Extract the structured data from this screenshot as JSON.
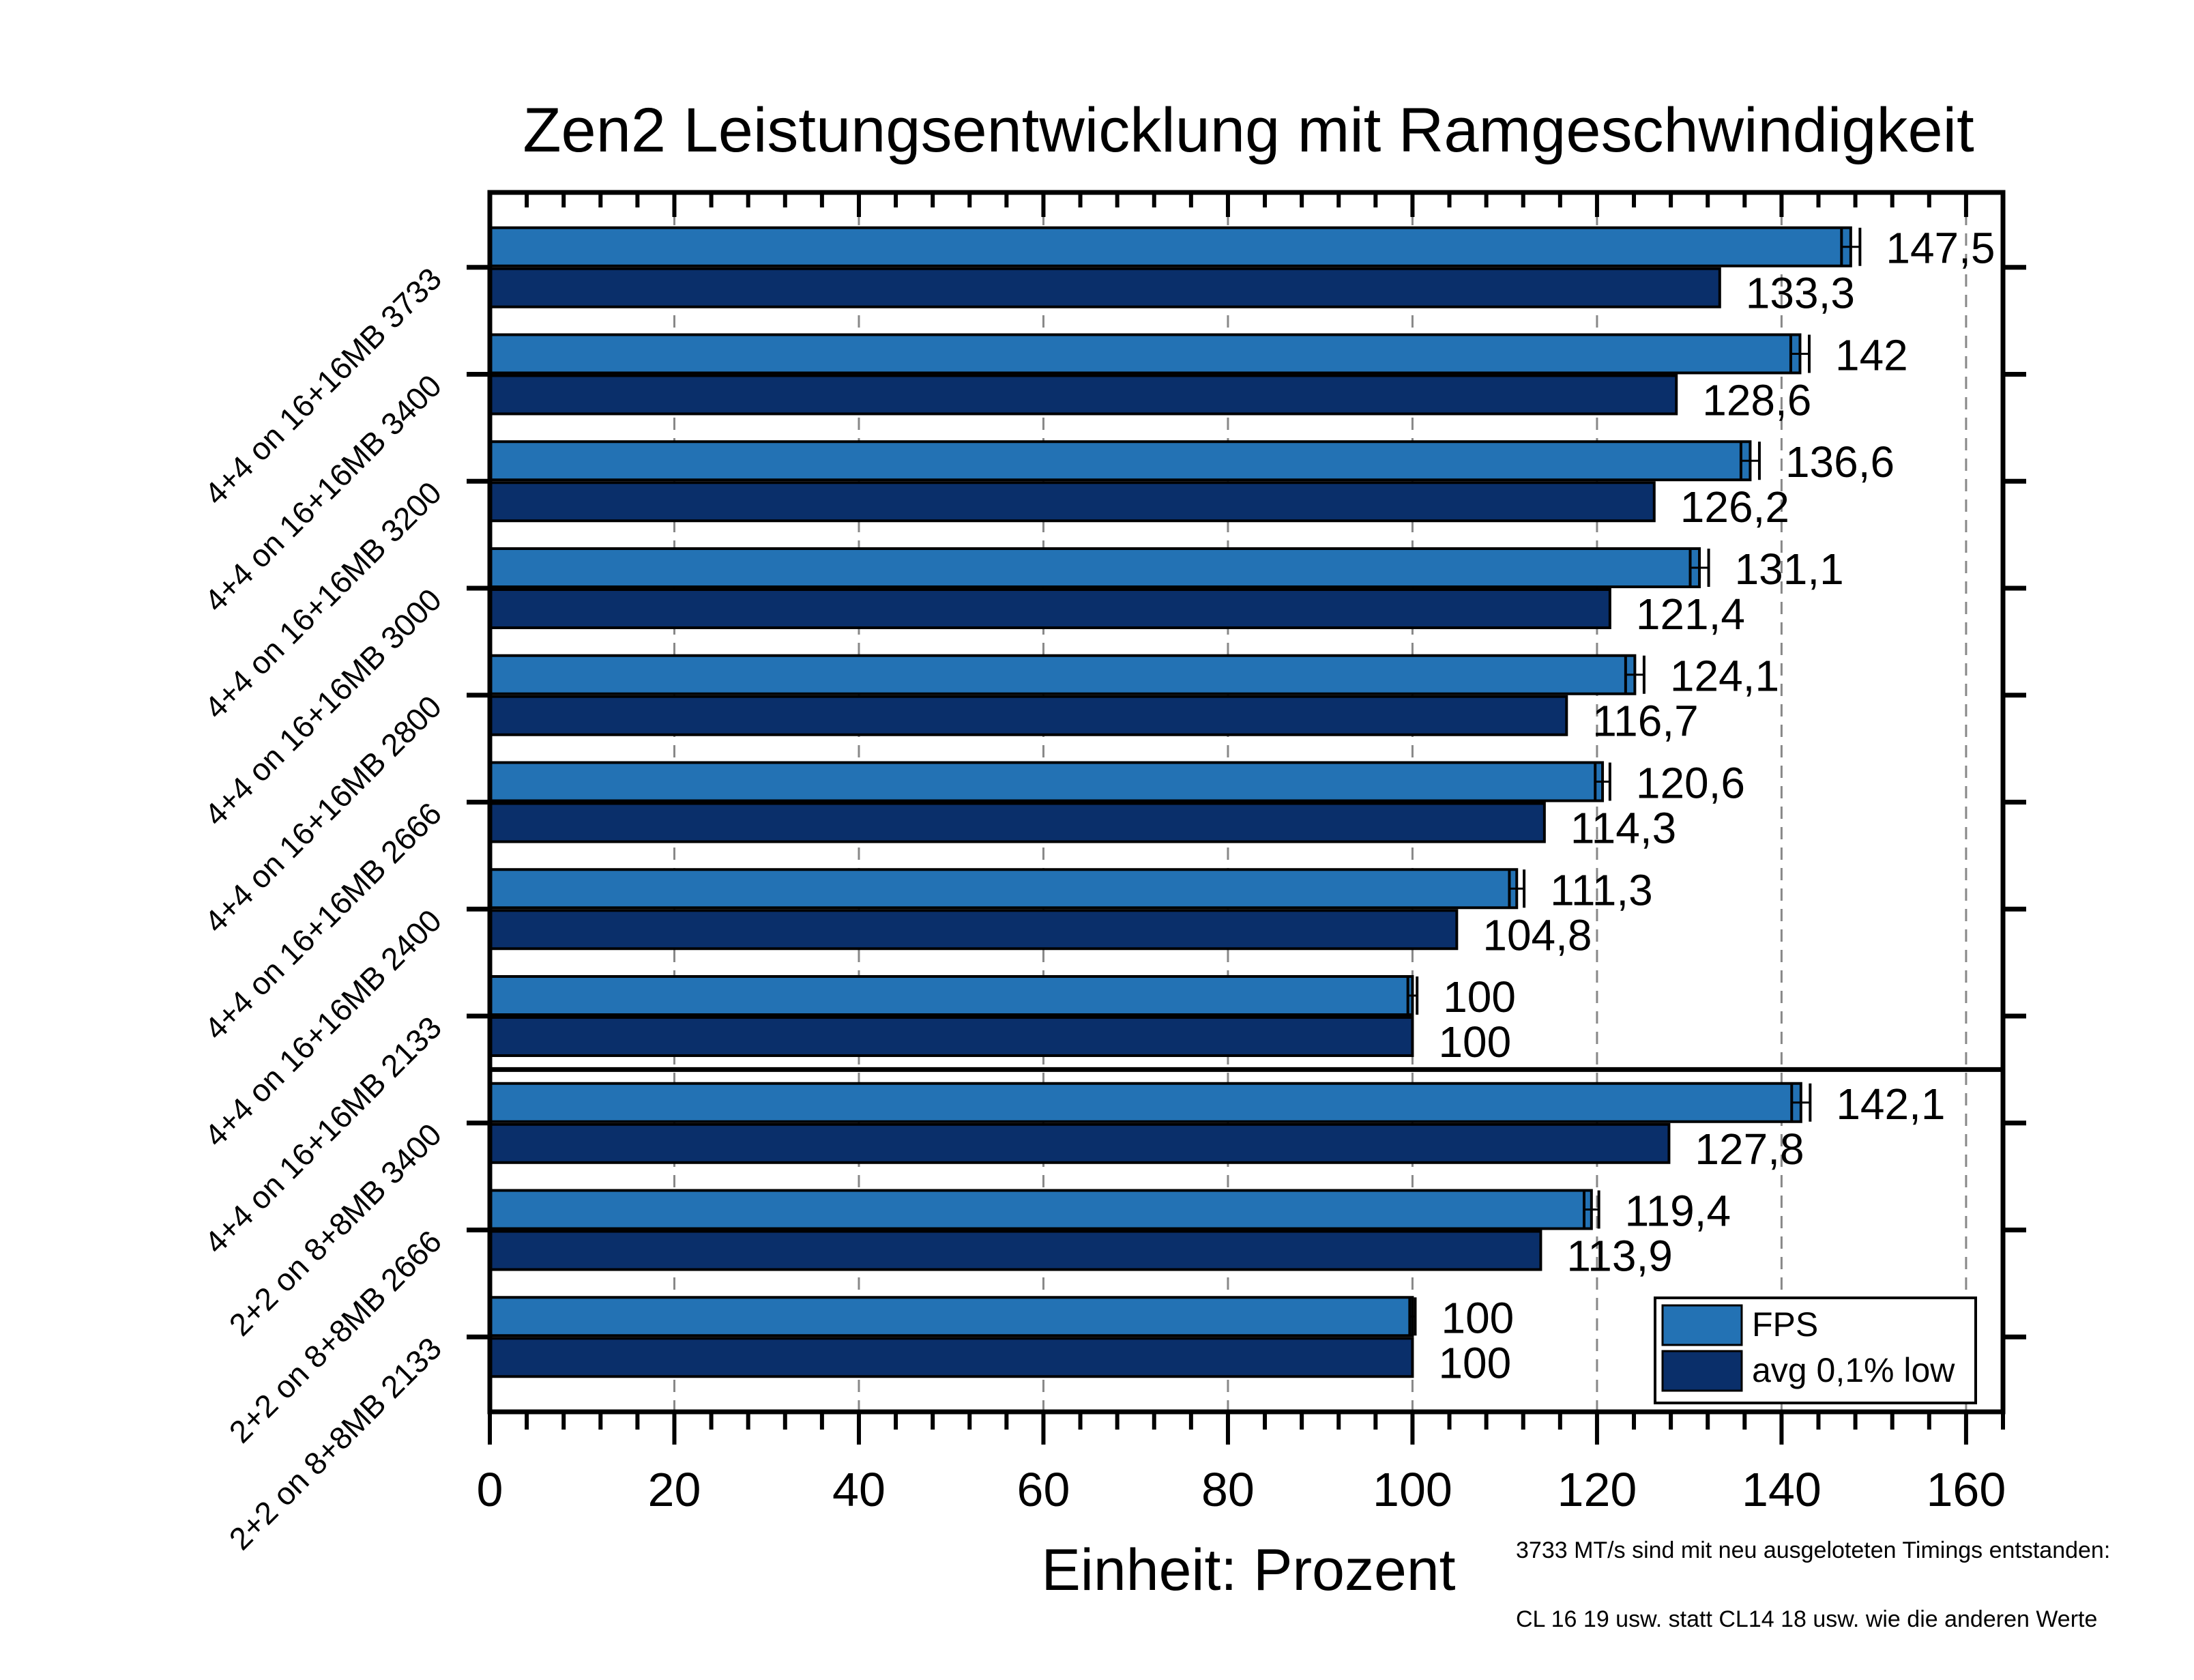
{
  "chart_data": {
    "type": "bar",
    "orientation": "horizontal",
    "title": "Zen2 Leistungsentwicklung mit Ramgeschwindigkeit",
    "xlabel": "Einheit: Prozent",
    "ylabel": "",
    "xlim": [
      0,
      164
    ],
    "xticks": [
      0,
      20,
      40,
      60,
      80,
      100,
      120,
      140,
      160
    ],
    "xtick_labels": [
      "0",
      "20",
      "40",
      "60",
      "80",
      "100",
      "120",
      "140",
      "160"
    ],
    "minor_tick_step": 4,
    "grid": "vertical dashed at major ticks",
    "categories": [
      "4+4 on 16+16MB 3733",
      "4+4 on 16+16MB 3400",
      "4+4 on 16+16MB 3200",
      "4+4 on 16+16MB 3000",
      "4+4 on 16+16MB 2800",
      "4+4 on 16+16MB 2666",
      "4+4 on 16+16MB 2400",
      "4+4 on 16+16MB 2133",
      "2+2 on 8+8MB 3400",
      "2+2 on 8+8MB 2666",
      "2+2 on 8+8MB 2133"
    ],
    "group_separator_after_index": 7,
    "series": [
      {
        "name": "FPS",
        "color": "#2372B4",
        "values": [
          147.5,
          142,
          136.6,
          131.1,
          124.1,
          120.6,
          111.3,
          100,
          142.1,
          119.4,
          100
        ],
        "labels": [
          "147,5",
          "142",
          "136,6",
          "131,1",
          "124,1",
          "120,6",
          "111,3",
          "100",
          "142,1",
          "119,4",
          "100"
        ],
        "error": [
          1,
          1,
          1,
          1,
          1,
          0.8,
          0.8,
          0.5,
          1,
          0.8,
          0.3
        ]
      },
      {
        "name": "avg 0,1% low",
        "color": "#0A2F6A",
        "values": [
          133.3,
          128.6,
          126.2,
          121.4,
          116.7,
          114.3,
          104.8,
          100,
          127.8,
          113.9,
          100
        ],
        "labels": [
          "133,3",
          "128,6",
          "126,2",
          "121,4",
          "116,7",
          "114,3",
          "104,8",
          "100",
          "127,8",
          "113,9",
          "100"
        ]
      }
    ],
    "legend": {
      "position": "bottom-right",
      "entries": [
        "FPS",
        "avg 0,1% low"
      ]
    },
    "annotations": [
      "3733 MT/s sind mit neu ausgeloteten Timings entstanden:",
      "CL 16 19 usw. statt CL14 18 usw. wie die anderen Werte"
    ]
  }
}
